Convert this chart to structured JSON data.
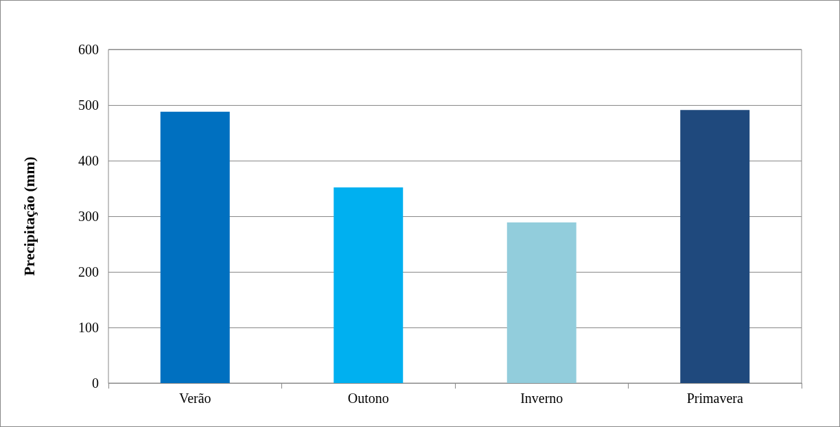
{
  "chart_data": {
    "type": "bar",
    "ylabel": "Precipitação (mm)",
    "categories": [
      "Verão",
      "Outono",
      "Inverno",
      "Primavera"
    ],
    "values": [
      488,
      352,
      289,
      491
    ],
    "colors": [
      "#0070c0",
      "#00b0f0",
      "#92cddc",
      "#1f497d"
    ],
    "ylim": [
      0,
      600
    ],
    "yticks": [
      0,
      100,
      200,
      300,
      400,
      500,
      600
    ],
    "grid": "y"
  }
}
